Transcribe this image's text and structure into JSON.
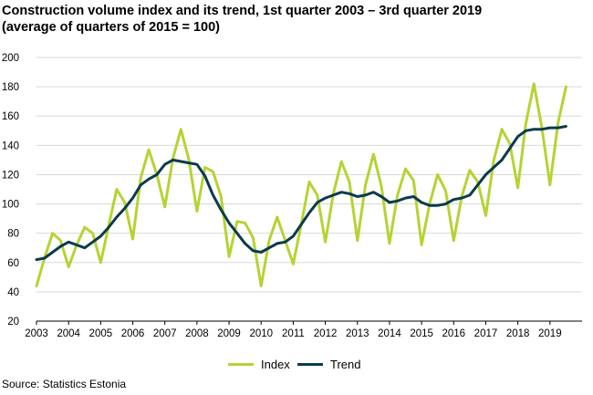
{
  "title_line1": "Construction volume index and its trend, 1st quarter 2003 – 3rd quarter 2019",
  "title_line2": "(average of quarters of 2015 = 100)",
  "source": "Source: Statistics Estonia",
  "colors": {
    "index": "#b5d334",
    "trend": "#0b3a4e",
    "grid": "#d9d9d9"
  },
  "chart_data": {
    "type": "line",
    "title": "Construction volume index and its trend, 1st quarter 2003 – 3rd quarter 2019",
    "subtitle": "(average of quarters of 2015 = 100)",
    "xlabel": "",
    "ylabel": "",
    "ylim": [
      20,
      200
    ],
    "yticks": [
      20,
      40,
      60,
      80,
      100,
      120,
      140,
      160,
      180,
      200
    ],
    "grid": "horizontal",
    "legend_position": "bottom",
    "categories": [
      "2003 Q1",
      "2003 Q2",
      "2003 Q3",
      "2003 Q4",
      "2004 Q1",
      "2004 Q2",
      "2004 Q3",
      "2004 Q4",
      "2005 Q1",
      "2005 Q2",
      "2005 Q3",
      "2005 Q4",
      "2006 Q1",
      "2006 Q2",
      "2006 Q3",
      "2006 Q4",
      "2007 Q1",
      "2007 Q2",
      "2007 Q3",
      "2007 Q4",
      "2008 Q1",
      "2008 Q2",
      "2008 Q3",
      "2008 Q4",
      "2009 Q1",
      "2009 Q2",
      "2009 Q3",
      "2009 Q4",
      "2010 Q1",
      "2010 Q2",
      "2010 Q3",
      "2010 Q4",
      "2011 Q1",
      "2011 Q2",
      "2011 Q3",
      "2011 Q4",
      "2012 Q1",
      "2012 Q2",
      "2012 Q3",
      "2012 Q4",
      "2013 Q1",
      "2013 Q2",
      "2013 Q3",
      "2013 Q4",
      "2014 Q1",
      "2014 Q2",
      "2014 Q3",
      "2014 Q4",
      "2015 Q1",
      "2015 Q2",
      "2015 Q3",
      "2015 Q4",
      "2016 Q1",
      "2016 Q2",
      "2016 Q3",
      "2016 Q4",
      "2017 Q1",
      "2017 Q2",
      "2017 Q3",
      "2017 Q4",
      "2018 Q1",
      "2018 Q2",
      "2018 Q3",
      "2018 Q4",
      "2019 Q1",
      "2019 Q2",
      "2019 Q3"
    ],
    "xtick_labels": [
      "2003",
      "2004",
      "2005",
      "2006",
      "2007",
      "2008",
      "2009",
      "2010",
      "2011",
      "2012",
      "2013",
      "2014",
      "2015",
      "2016",
      "2017",
      "2018",
      "2019"
    ],
    "series": [
      {
        "name": "Index",
        "values": [
          44,
          63,
          80,
          75,
          57,
          72,
          84,
          80,
          60,
          85,
          110,
          101,
          76,
          118,
          137,
          120,
          98,
          131,
          151,
          130,
          95,
          125,
          122,
          105,
          64,
          88,
          87,
          77,
          44,
          75,
          91,
          75,
          59,
          86,
          115,
          106,
          74,
          107,
          129,
          115,
          75,
          113,
          134,
          112,
          73,
          106,
          124,
          116,
          72,
          100,
          120,
          109,
          75,
          105,
          123,
          115,
          92,
          130,
          151,
          141,
          111,
          155,
          182,
          152,
          113,
          155,
          180
        ]
      },
      {
        "name": "Trend",
        "values": [
          62,
          63,
          67,
          71,
          74,
          72,
          70,
          74,
          78,
          84,
          91,
          97,
          104,
          113,
          117,
          120,
          127,
          130,
          129,
          128,
          127,
          119,
          106,
          96,
          87,
          80,
          73,
          68,
          67,
          70,
          73,
          74,
          78,
          86,
          94,
          101,
          104,
          106,
          108,
          107,
          105,
          106,
          108,
          105,
          101,
          102,
          104,
          105,
          101,
          99,
          99,
          100,
          103,
          104,
          106,
          113,
          120,
          125,
          130,
          138,
          146,
          150,
          151,
          151,
          152,
          152,
          153
        ]
      }
    ]
  },
  "legend": [
    {
      "label": "Index"
    },
    {
      "label": "Trend"
    }
  ]
}
